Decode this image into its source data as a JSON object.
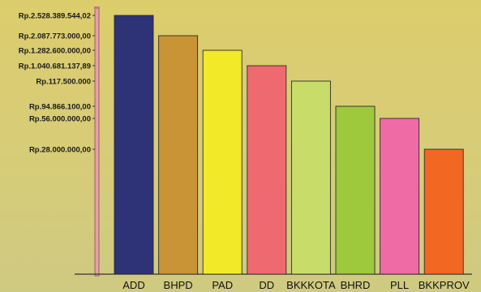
{
  "chart_data": {
    "type": "bar",
    "title": "",
    "xlabel": "",
    "ylabel": "",
    "categories": [
      "ADD",
      "BHPD",
      "PAD",
      "DD",
      "BKKKOTA",
      "BHRD",
      "PLL",
      "BKKPROV"
    ],
    "values": [
      2528389544.02,
      2087773000.0,
      1282600000.0,
      1040681137.89,
      117500000.0,
      94866100.0,
      56000000.0,
      28000000.0
    ],
    "y_tick_labels": [
      "Rp.2.528.389.544,02",
      "Rp.2.087.773.000,00",
      "Rp.1.282.600.000,00",
      "Rp.1.040.681.137,89",
      "Rp.117.500.000",
      "Rp.94.866.100,00",
      "Rp.56.000.000,00",
      "Rp.28.000.000,00"
    ],
    "y_scale": "non-linear (ranked)",
    "grid": false,
    "legend": "none",
    "colors": [
      "#2e3276",
      "#c99436",
      "#f2ea29",
      "#ee6a70",
      "#c8dc6a",
      "#9ec93c",
      "#ef6ba6",
      "#f26722"
    ]
  }
}
